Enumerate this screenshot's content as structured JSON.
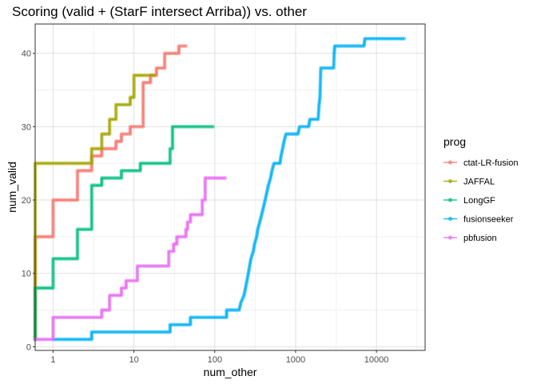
{
  "chart_data": {
    "type": "line",
    "title": "Scoring (valid + (StarF intersect Arriba)) vs. other",
    "xlabel": "num_other",
    "ylabel": "num_valid",
    "x_scale": "log10",
    "xlim": [
      0.6,
      40000
    ],
    "ylim": [
      -0.5,
      44
    ],
    "x_ticks": [
      1,
      10,
      100,
      1000,
      10000
    ],
    "x_tick_labels": [
      "1",
      "10",
      "100",
      "1000",
      "10000"
    ],
    "y_ticks": [
      0,
      10,
      20,
      30,
      40
    ],
    "y_tick_labels": [
      "0",
      "10",
      "20",
      "30",
      "40"
    ],
    "grid": true,
    "legend_title": "prog",
    "legend_position": "right",
    "series": [
      {
        "name": "ctat-LR-fusion",
        "color": "#F8766D",
        "points": [
          [
            0.6,
            1
          ],
          [
            0.6,
            15
          ],
          [
            1,
            15
          ],
          [
            1,
            20
          ],
          [
            2,
            20
          ],
          [
            2,
            24
          ],
          [
            3,
            24
          ],
          [
            3,
            26
          ],
          [
            4,
            26
          ],
          [
            4,
            27
          ],
          [
            6,
            27
          ],
          [
            6,
            28
          ],
          [
            7,
            28
          ],
          [
            7,
            29
          ],
          [
            9,
            29
          ],
          [
            9,
            30
          ],
          [
            13,
            30
          ],
          [
            13,
            36
          ],
          [
            16,
            36
          ],
          [
            16,
            37
          ],
          [
            19,
            37
          ],
          [
            19,
            38
          ],
          [
            24,
            38
          ],
          [
            24,
            40
          ],
          [
            36,
            40
          ],
          [
            36,
            41
          ],
          [
            44,
            41
          ]
        ]
      },
      {
        "name": "JAFFAL",
        "color": "#A3A500",
        "points": [
          [
            0.6,
            1
          ],
          [
            0.6,
            25
          ],
          [
            3,
            25
          ],
          [
            3,
            27
          ],
          [
            4,
            27
          ],
          [
            4,
            29
          ],
          [
            5,
            29
          ],
          [
            5,
            31
          ],
          [
            6,
            31
          ],
          [
            6,
            33
          ],
          [
            9,
            33
          ],
          [
            9,
            34
          ],
          [
            10,
            34
          ],
          [
            10,
            37
          ],
          [
            18,
            37
          ]
        ]
      },
      {
        "name": "LongGF",
        "color": "#00BF7D",
        "points": [
          [
            0.6,
            1
          ],
          [
            0.6,
            8
          ],
          [
            1,
            8
          ],
          [
            1,
            12
          ],
          [
            2,
            12
          ],
          [
            2,
            16
          ],
          [
            3,
            16
          ],
          [
            3,
            22
          ],
          [
            4,
            22
          ],
          [
            4,
            23
          ],
          [
            7,
            23
          ],
          [
            7,
            24
          ],
          [
            12,
            24
          ],
          [
            12,
            25
          ],
          [
            28,
            25
          ],
          [
            28,
            27
          ],
          [
            30,
            27
          ],
          [
            30,
            30
          ],
          [
            95,
            30
          ]
        ]
      },
      {
        "name": "fusionseeker",
        "color": "#00B0F6",
        "points": [
          [
            1,
            1
          ],
          [
            2,
            1
          ],
          [
            3,
            1
          ],
          [
            3,
            2
          ],
          [
            28,
            2
          ],
          [
            28,
            3
          ],
          [
            50,
            3
          ],
          [
            50,
            4
          ],
          [
            140,
            4
          ],
          [
            140,
            5
          ],
          [
            200,
            5
          ],
          [
            210,
            6
          ],
          [
            230,
            7
          ],
          [
            240,
            8
          ],
          [
            250,
            9
          ],
          [
            260,
            10
          ],
          [
            270,
            11
          ],
          [
            280,
            12
          ],
          [
            300,
            13
          ],
          [
            310,
            14
          ],
          [
            330,
            15
          ],
          [
            340,
            16
          ],
          [
            360,
            17
          ],
          [
            380,
            18
          ],
          [
            400,
            19
          ],
          [
            420,
            20
          ],
          [
            440,
            21
          ],
          [
            460,
            22
          ],
          [
            490,
            23
          ],
          [
            510,
            24
          ],
          [
            540,
            25
          ],
          [
            640,
            25
          ],
          [
            660,
            26
          ],
          [
            690,
            27
          ],
          [
            720,
            28
          ],
          [
            760,
            29
          ],
          [
            1070,
            29
          ],
          [
            1120,
            30
          ],
          [
            1450,
            30
          ],
          [
            1500,
            31
          ],
          [
            1900,
            31
          ],
          [
            1950,
            33
          ],
          [
            2000,
            34
          ],
          [
            2050,
            38
          ],
          [
            2950,
            38
          ],
          [
            3000,
            40
          ],
          [
            3050,
            41
          ],
          [
            7000,
            41
          ],
          [
            7200,
            42
          ],
          [
            22000,
            42
          ]
        ]
      },
      {
        "name": "pbfusion",
        "color": "#E76BF3",
        "points": [
          [
            0.6,
            1
          ],
          [
            1,
            1
          ],
          [
            1,
            4
          ],
          [
            4,
            4
          ],
          [
            4,
            5
          ],
          [
            5,
            5
          ],
          [
            5,
            7
          ],
          [
            7,
            7
          ],
          [
            7,
            8
          ],
          [
            8,
            8
          ],
          [
            8,
            9
          ],
          [
            11,
            9
          ],
          [
            11,
            11
          ],
          [
            27,
            11
          ],
          [
            27,
            13
          ],
          [
            31,
            13
          ],
          [
            31,
            14
          ],
          [
            34,
            14
          ],
          [
            34,
            15
          ],
          [
            44,
            15
          ],
          [
            44,
            16
          ],
          [
            46,
            16
          ],
          [
            46,
            17
          ],
          [
            50,
            17
          ],
          [
            50,
            18
          ],
          [
            70,
            18
          ],
          [
            70,
            20
          ],
          [
            76,
            20
          ],
          [
            76,
            23
          ],
          [
            135,
            23
          ]
        ]
      }
    ]
  }
}
